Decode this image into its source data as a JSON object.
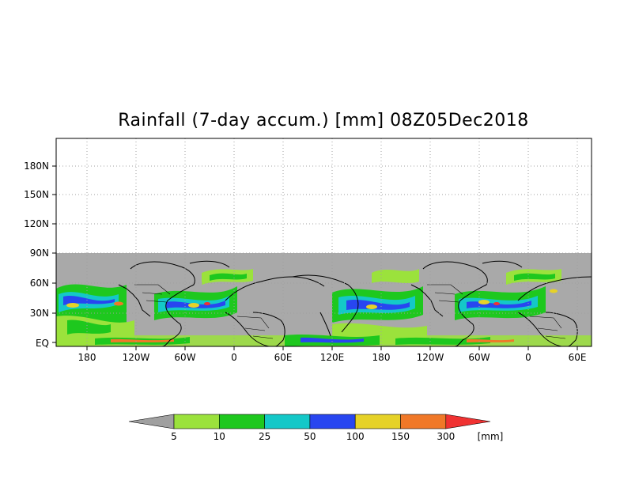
{
  "title": "Rainfall (7-day accum.) [mm] 08Z05Dec2018",
  "map": {
    "y_ticks": [
      "180N",
      "150N",
      "120N",
      "90N",
      "60N",
      "30N",
      "EQ"
    ],
    "x_ticks": [
      "180",
      "120W",
      "60W",
      "0",
      "60E",
      "120E",
      "180",
      "120W",
      "60W",
      "0",
      "60E"
    ],
    "no_data_color": "#ffffff",
    "land_fill_color": "#a9a9a9",
    "coastline_color": "#000000"
  },
  "colorbar": {
    "unit": "[mm]",
    "labels": [
      "5",
      "10",
      "25",
      "50",
      "100",
      "150",
      "300"
    ],
    "colors": [
      "#a0a0a0",
      "#9be23c",
      "#1ec81e",
      "#14c8c8",
      "#2846f0",
      "#e6d228",
      "#f07828",
      "#f03232"
    ]
  }
}
